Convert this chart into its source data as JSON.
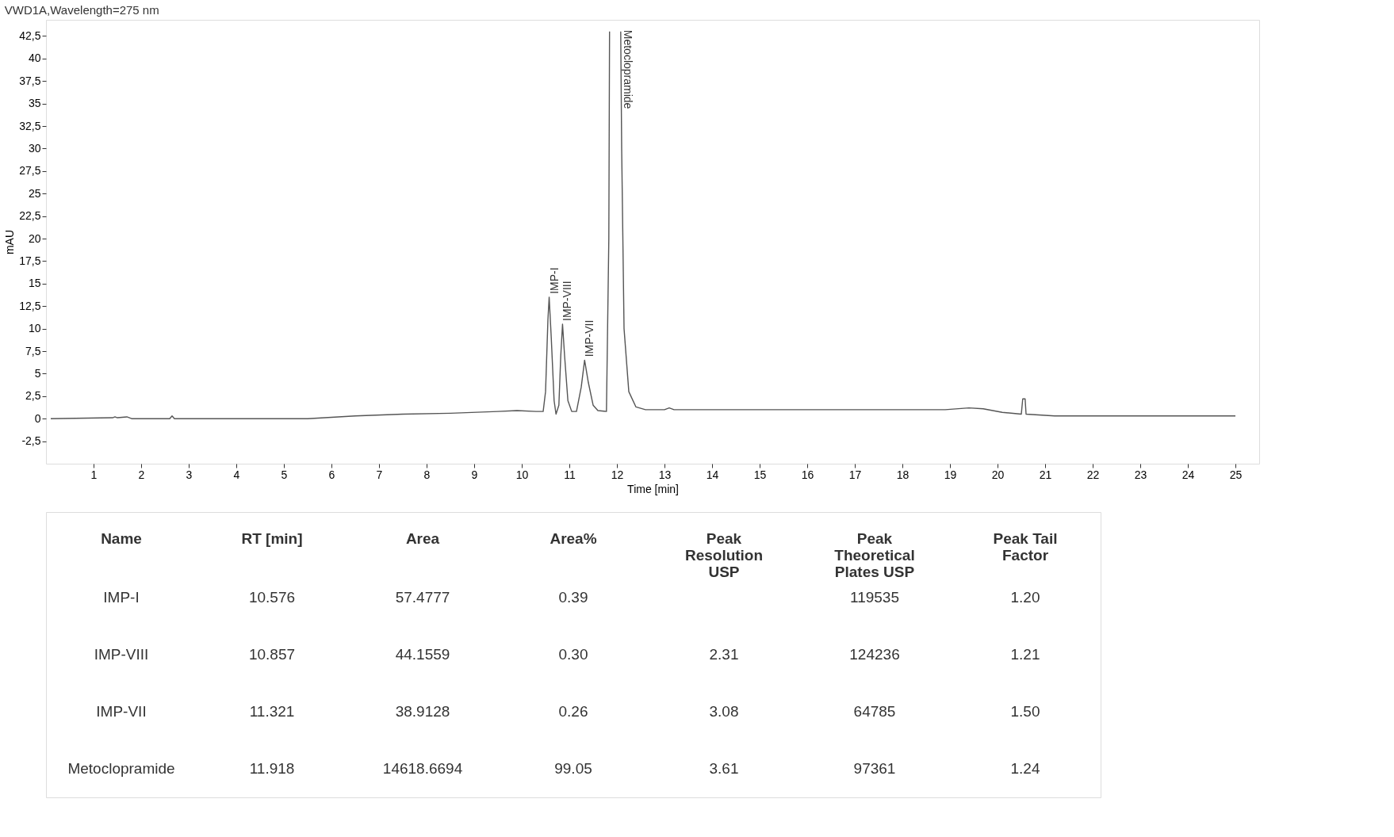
{
  "chart_data": [
    {
      "type": "line",
      "title": "VWD1A,Wavelength=275 nm",
      "xlabel": "Time [min]",
      "ylabel": "mAU",
      "x": [
        0.1,
        1.4,
        1.45,
        1.5,
        1.7,
        1.8,
        2.6,
        2.65,
        2.7,
        5.5,
        6.5,
        7.5,
        8.5,
        9.5,
        9.9,
        10.3,
        10.45,
        10.5,
        10.55,
        10.576,
        10.62,
        10.68,
        10.72,
        10.78,
        10.82,
        10.857,
        10.9,
        10.97,
        11.05,
        11.15,
        11.25,
        11.321,
        11.4,
        11.5,
        11.6,
        11.78,
        11.83,
        11.845,
        11.87,
        12.05,
        12.08,
        12.1,
        12.15,
        12.25,
        12.4,
        12.6,
        13.0,
        13.1,
        13.2,
        15,
        17,
        18.9,
        19.4,
        19.7,
        20.1,
        20.5,
        20.53,
        20.58,
        20.6,
        21.2,
        22.7,
        25
      ],
      "series": [
        {
          "color": "#555555",
          "values": [
            0,
            0.1,
            0.2,
            0.1,
            0.2,
            0,
            0,
            0.3,
            0,
            0,
            0.3,
            0.5,
            0.6,
            0.8,
            0.9,
            0.8,
            0.8,
            3,
            11,
            13.5,
            9,
            2,
            0.5,
            1.5,
            7,
            10.5,
            7,
            2,
            0.8,
            0.8,
            3.5,
            6.5,
            4,
            1.5,
            0.9,
            0.8,
            20,
            43,
            null,
            null,
            43,
            30,
            10,
            3,
            1.3,
            1,
            1,
            1.2,
            1,
            1,
            1,
            1,
            1.2,
            1.1,
            0.7,
            0.5,
            2.2,
            2.2,
            0.5,
            0.3,
            0.3,
            0.3
          ]
        }
      ],
      "xlim": [
        0,
        25.5
      ],
      "ylim": [
        -5,
        44.3
      ],
      "xticks": [
        1,
        2,
        3,
        4,
        5,
        6,
        7,
        8,
        9,
        10,
        11,
        12,
        13,
        14,
        15,
        16,
        17,
        18,
        19,
        20,
        21,
        22,
        23,
        24,
        25
      ],
      "yticks": [
        {
          "value": -2.5,
          "label": "-2,5"
        },
        0,
        {
          "value": 2.5,
          "label": "2,5"
        },
        5,
        {
          "value": 7.5,
          "label": "7,5"
        },
        10,
        {
          "value": 12.5,
          "label": "12,5"
        },
        15,
        {
          "value": 17.5,
          "label": "17,5"
        },
        20,
        {
          "value": 22.5,
          "label": "22,5"
        },
        25,
        {
          "value": 27.5,
          "label": "27,5"
        },
        30,
        {
          "value": 32.5,
          "label": "32,5"
        },
        35,
        {
          "value": 37.5,
          "label": "37,5"
        },
        40,
        {
          "value": 42.5,
          "label": "42,5"
        }
      ],
      "grid": false,
      "line_style": "solid",
      "annotations": [
        {
          "text": "IMP-I",
          "x": 10.576,
          "y": 13.5
        },
        {
          "text": "IMP-VIII",
          "x": 10.857,
          "y": 10.5
        },
        {
          "text": "IMP-VII",
          "x": 11.321,
          "y": 6.5
        },
        {
          "text": "Metoclopramide",
          "x": 12.08,
          "y": 43
        }
      ]
    },
    {
      "type": "other",
      "categories": [
        "Name",
        "RT [min]",
        "Area",
        "Area%",
        "Peak\nResolution\nUSP",
        "Peak\nTheoretical\nPlates USP",
        "Peak Tail\nFactor"
      ],
      "y_categories": [
        "IMP-I",
        "IMP-VIII",
        "IMP-VII",
        "Metoclopramide"
      ],
      "cell_labels": [
        [
          "10.576",
          "57.4777",
          "0.39",
          null,
          "119535",
          "1.20"
        ],
        [
          "10.857",
          "44.1559",
          "0.30",
          "2.31",
          "124236",
          "1.21"
        ],
        [
          "11.321",
          "38.9128",
          "0.26",
          "3.08",
          "64785",
          "1.50"
        ],
        [
          "11.918",
          "14618.6694",
          "99.05",
          "3.61",
          "97361",
          "1.24"
        ]
      ]
    }
  ]
}
